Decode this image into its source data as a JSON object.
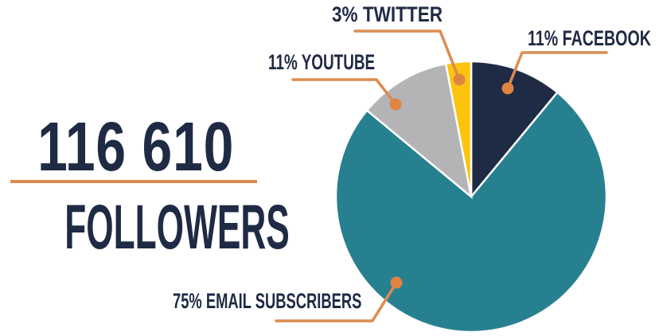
{
  "followers": {
    "value": "116 610",
    "label": "FOLLOWERS"
  },
  "colors": {
    "navy": "#1F2A44",
    "teal": "#27808F",
    "gray": "#B4B4B6",
    "yellow": "#FCC40E",
    "orange": "#DC8C4F",
    "dot_orange": "#E08443",
    "text": "#1F2A44",
    "background": "#FFFFFF",
    "slice_gap": "#FFFFFF"
  },
  "chart_data": {
    "type": "pie",
    "title": "",
    "start_angle_deg": 0,
    "direction": "clockwise",
    "legend_position": "callout-labels",
    "total_label": "116 610 FOLLOWERS",
    "slices": [
      {
        "name": "facebook",
        "label": "11% FACEBOOK",
        "percent": 11,
        "color_key": "navy"
      },
      {
        "name": "email",
        "label": "75% EMAIL SUBSCRIBERS",
        "percent": 75,
        "color_key": "teal"
      },
      {
        "name": "youtube",
        "label": "11% YOUTUBE",
        "percent": 11,
        "color_key": "gray"
      },
      {
        "name": "twitter",
        "label": "3% TWITTER",
        "percent": 3,
        "color_key": "yellow"
      }
    ]
  }
}
